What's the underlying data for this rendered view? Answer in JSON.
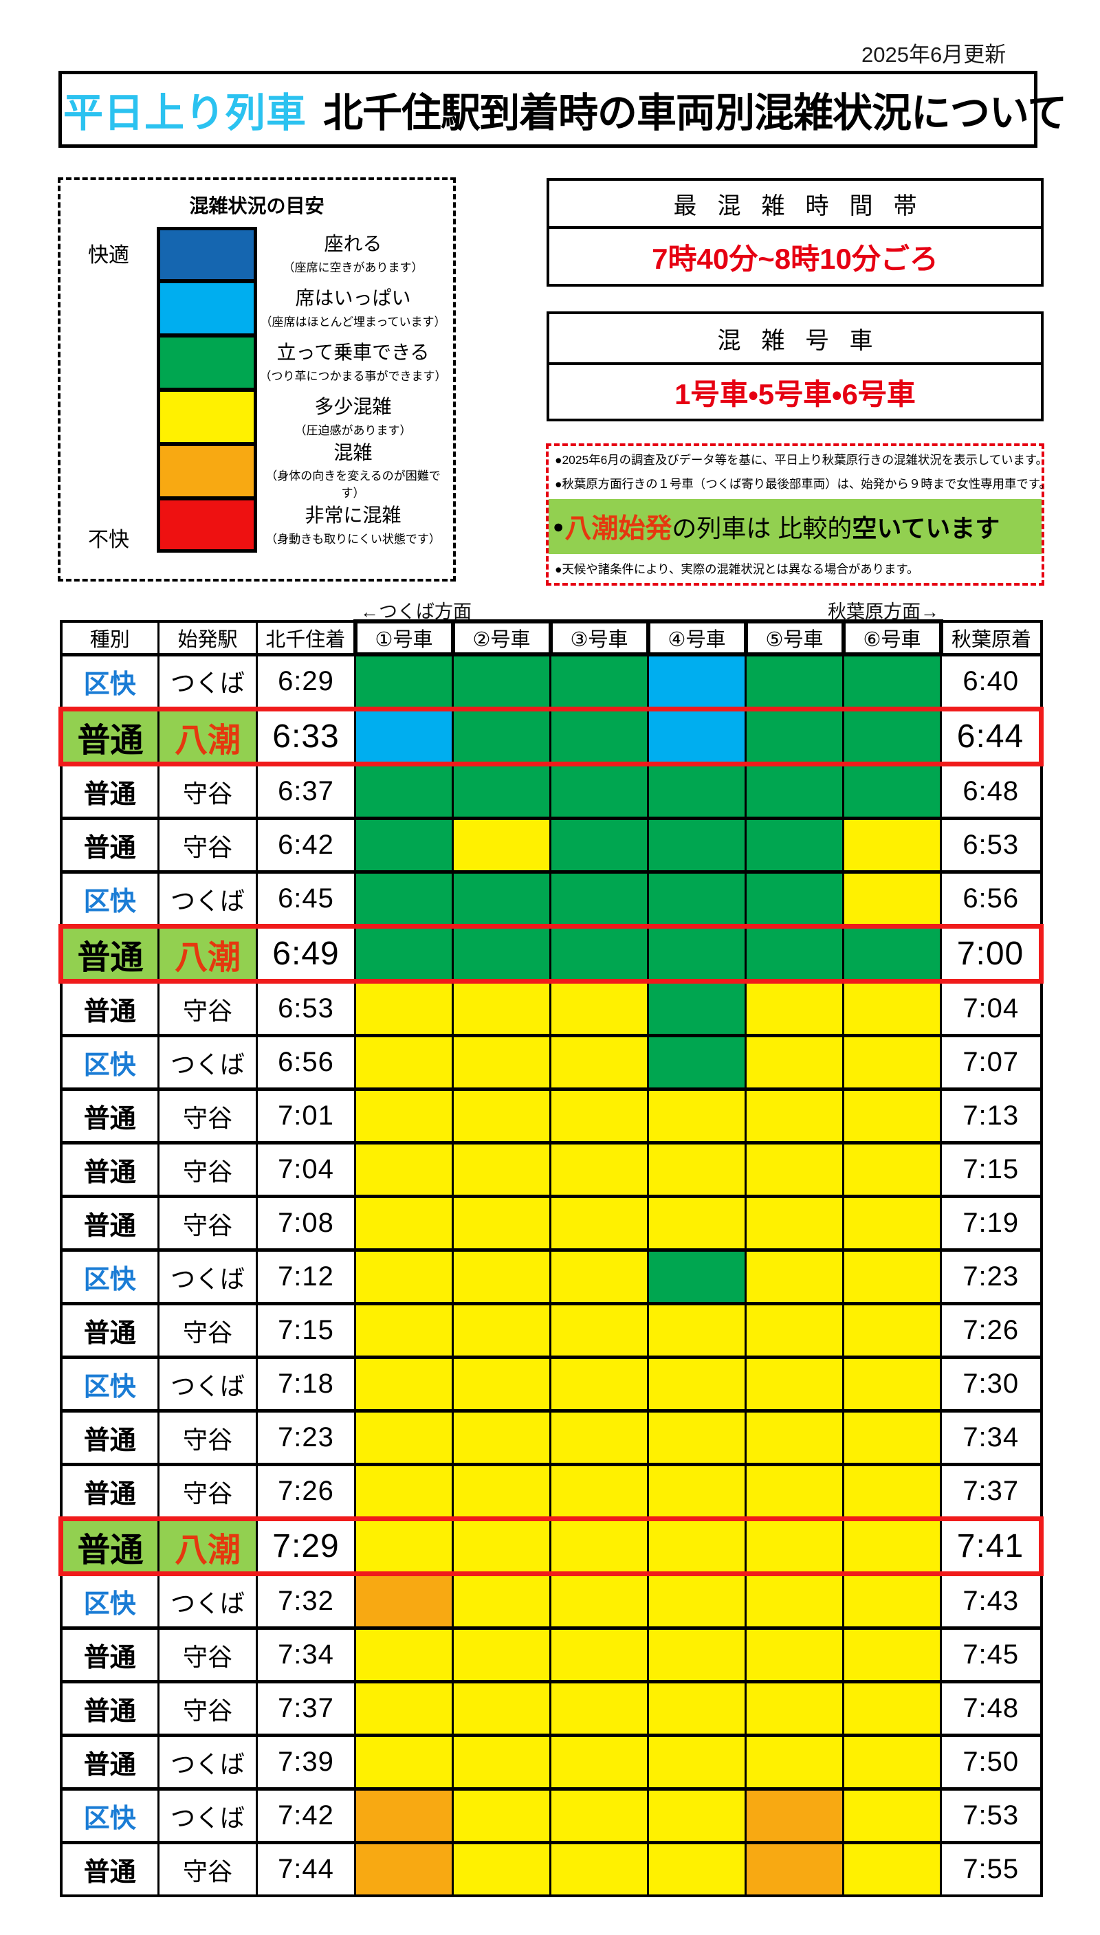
{
  "updated": "2025年6月更新",
  "title": {
    "badge": "平日上り列車",
    "main": "北千住駅到着時の車両別混雑状況について",
    "badge_color": "#2BC2F0"
  },
  "legend": {
    "title": "混雑状況の目安",
    "comfort_top": "快適",
    "comfort_bottom": "不快",
    "levels": [
      {
        "key": "seated",
        "color": "#1566B0",
        "label": "座れる",
        "sub": "（座席に空きがあります）"
      },
      {
        "key": "seats-full",
        "color": "#00AEEF",
        "label": "席はいっぱい",
        "sub": "（座席はほとんど埋まっています）"
      },
      {
        "key": "can-stand",
        "color": "#00A650",
        "label": "立って乗車できる",
        "sub": "（つり革につかまる事ができます）"
      },
      {
        "key": "somewhat-crowded",
        "color": "#FFF100",
        "label": "多少混雑",
        "sub": "（圧迫感があります）"
      },
      {
        "key": "crowded",
        "color": "#F8A912",
        "label": "混雑",
        "sub": "（身体の向きを変えるのが困難です）"
      },
      {
        "key": "very-crowded",
        "color": "#EE1111",
        "label": "非常に混雑",
        "sub": "（身動きも取りにくい状態です）"
      }
    ]
  },
  "peak_time": {
    "header": "最混雑時間帯",
    "value": "7時40分~8時10分ごろ",
    "value_color": "#E60012"
  },
  "crowded_cars": {
    "header": "混雑号車",
    "value": "1号車・5号車・6号車",
    "value_color": "#E60012"
  },
  "notes": {
    "line1": "●2025年6月の調査及びデータ等を基に、平日上り秋葉原行きの混雑状況を表示しています。",
    "line2": "●秋葉原方面行きの１号車（つくば寄り最後部車両）は、始発から９時まで女性専用車です。",
    "highlight": {
      "bullet": "●",
      "em": "八潮始発",
      "mid": "の列車は 比較的",
      "bold": "空いています",
      "band_color": "#92D050",
      "em_color": "#E5380F"
    },
    "line4": "●天候や諸条件により、実際の混雑状況とは異なる場合があります。"
  },
  "table": {
    "direction_left": "←つくば方面",
    "direction_right": "秋葉原方面→",
    "headers": [
      "種別",
      "始発駅",
      "北千住着",
      "①号車",
      "②号車",
      "③号車",
      "④号車",
      "⑤号車",
      "⑥号車",
      "秋葉原着"
    ],
    "color_map": {
      "B": "#1566B0",
      "L": "#00AEEF",
      "G": "#00A650",
      "Y": "#FFF100",
      "O": "#F8A912",
      "R": "#EE1111"
    },
    "type_blue": "#1A7CD5",
    "highlight_border": "#F01B1B",
    "rows": [
      {
        "type": "区快",
        "type_color": "blue",
        "origin": "つくば",
        "arrive": "6:29",
        "cars": [
          "G",
          "G",
          "G",
          "L",
          "G",
          "G"
        ],
        "akiba": "6:40",
        "highlight": false
      },
      {
        "type": "普通",
        "type_color": "black",
        "origin": "八潮",
        "arrive": "6:33",
        "cars": [
          "L",
          "G",
          "G",
          "L",
          "G",
          "G"
        ],
        "akiba": "6:44",
        "highlight": true
      },
      {
        "type": "普通",
        "type_color": "black",
        "origin": "守谷",
        "arrive": "6:37",
        "cars": [
          "G",
          "G",
          "G",
          "G",
          "G",
          "G"
        ],
        "akiba": "6:48",
        "highlight": false
      },
      {
        "type": "普通",
        "type_color": "black",
        "origin": "守谷",
        "arrive": "6:42",
        "cars": [
          "G",
          "Y",
          "G",
          "G",
          "G",
          "Y"
        ],
        "akiba": "6:53",
        "highlight": false
      },
      {
        "type": "区快",
        "type_color": "blue",
        "origin": "つくば",
        "arrive": "6:45",
        "cars": [
          "G",
          "G",
          "G",
          "G",
          "G",
          "Y"
        ],
        "akiba": "6:56",
        "highlight": false
      },
      {
        "type": "普通",
        "type_color": "black",
        "origin": "八潮",
        "arrive": "6:49",
        "cars": [
          "G",
          "G",
          "G",
          "G",
          "G",
          "G"
        ],
        "akiba": "7:00",
        "highlight": true
      },
      {
        "type": "普通",
        "type_color": "black",
        "origin": "守谷",
        "arrive": "6:53",
        "cars": [
          "Y",
          "Y",
          "Y",
          "G",
          "Y",
          "Y"
        ],
        "akiba": "7:04",
        "highlight": false
      },
      {
        "type": "区快",
        "type_color": "blue",
        "origin": "つくば",
        "arrive": "6:56",
        "cars": [
          "Y",
          "Y",
          "Y",
          "G",
          "Y",
          "Y"
        ],
        "akiba": "7:07",
        "highlight": false
      },
      {
        "type": "普通",
        "type_color": "black",
        "origin": "守谷",
        "arrive": "7:01",
        "cars": [
          "Y",
          "Y",
          "Y",
          "Y",
          "Y",
          "Y"
        ],
        "akiba": "7:13",
        "highlight": false
      },
      {
        "type": "普通",
        "type_color": "black",
        "origin": "守谷",
        "arrive": "7:04",
        "cars": [
          "Y",
          "Y",
          "Y",
          "Y",
          "Y",
          "Y"
        ],
        "akiba": "7:15",
        "highlight": false
      },
      {
        "type": "普通",
        "type_color": "black",
        "origin": "守谷",
        "arrive": "7:08",
        "cars": [
          "Y",
          "Y",
          "Y",
          "Y",
          "Y",
          "Y"
        ],
        "akiba": "7:19",
        "highlight": false
      },
      {
        "type": "区快",
        "type_color": "blue",
        "origin": "つくば",
        "arrive": "7:12",
        "cars": [
          "Y",
          "Y",
          "Y",
          "G",
          "Y",
          "Y"
        ],
        "akiba": "7:23",
        "highlight": false
      },
      {
        "type": "普通",
        "type_color": "black",
        "origin": "守谷",
        "arrive": "7:15",
        "cars": [
          "Y",
          "Y",
          "Y",
          "Y",
          "Y",
          "Y"
        ],
        "akiba": "7:26",
        "highlight": false
      },
      {
        "type": "区快",
        "type_color": "blue",
        "origin": "つくば",
        "arrive": "7:18",
        "cars": [
          "Y",
          "Y",
          "Y",
          "Y",
          "Y",
          "Y"
        ],
        "akiba": "7:30",
        "highlight": false
      },
      {
        "type": "普通",
        "type_color": "black",
        "origin": "守谷",
        "arrive": "7:23",
        "cars": [
          "Y",
          "Y",
          "Y",
          "Y",
          "Y",
          "Y"
        ],
        "akiba": "7:34",
        "highlight": false
      },
      {
        "type": "普通",
        "type_color": "black",
        "origin": "守谷",
        "arrive": "7:26",
        "cars": [
          "Y",
          "Y",
          "Y",
          "Y",
          "Y",
          "Y"
        ],
        "akiba": "7:37",
        "highlight": false
      },
      {
        "type": "普通",
        "type_color": "black",
        "origin": "八潮",
        "arrive": "7:29",
        "cars": [
          "Y",
          "Y",
          "Y",
          "Y",
          "Y",
          "Y"
        ],
        "akiba": "7:41",
        "highlight": true
      },
      {
        "type": "区快",
        "type_color": "blue",
        "origin": "つくば",
        "arrive": "7:32",
        "cars": [
          "O",
          "Y",
          "Y",
          "Y",
          "Y",
          "Y"
        ],
        "akiba": "7:43",
        "highlight": false
      },
      {
        "type": "普通",
        "type_color": "black",
        "origin": "守谷",
        "arrive": "7:34",
        "cars": [
          "Y",
          "Y",
          "Y",
          "Y",
          "Y",
          "Y"
        ],
        "akiba": "7:45",
        "highlight": false
      },
      {
        "type": "普通",
        "type_color": "black",
        "origin": "守谷",
        "arrive": "7:37",
        "cars": [
          "Y",
          "Y",
          "Y",
          "Y",
          "Y",
          "Y"
        ],
        "akiba": "7:48",
        "highlight": false
      },
      {
        "type": "普通",
        "type_color": "black",
        "origin": "つくば",
        "arrive": "7:39",
        "cars": [
          "Y",
          "Y",
          "Y",
          "Y",
          "Y",
          "Y"
        ],
        "akiba": "7:50",
        "highlight": false
      },
      {
        "type": "区快",
        "type_color": "blue",
        "origin": "つくば",
        "arrive": "7:42",
        "cars": [
          "O",
          "Y",
          "Y",
          "Y",
          "O",
          "Y"
        ],
        "akiba": "7:53",
        "highlight": false
      },
      {
        "type": "普通",
        "type_color": "black",
        "origin": "守谷",
        "arrive": "7:44",
        "cars": [
          "O",
          "Y",
          "Y",
          "Y",
          "O",
          "Y"
        ],
        "akiba": "7:55",
        "highlight": false
      }
    ]
  }
}
